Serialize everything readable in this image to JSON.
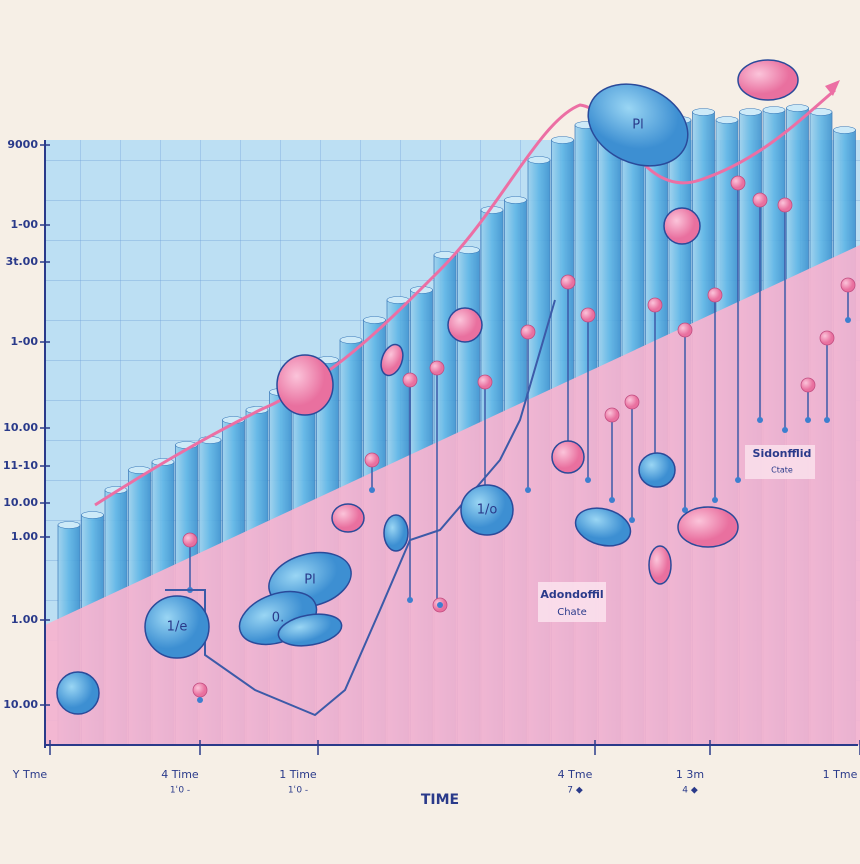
{
  "y_axis": {
    "labels": [
      "9000",
      "1-00",
      "3t.00",
      "1-00",
      "10.00",
      "11-10",
      "10.00",
      "1.00",
      "1.00",
      "10.00"
    ]
  },
  "x_axis": {
    "title": "TIME",
    "labels": [
      "Y Tme",
      "4 Time",
      "1 Time",
      "4 Tme",
      "1 3m",
      "1 Tme"
    ],
    "sublabels": [
      "1ʿ0 -",
      "1ʿ0 -",
      "7 ◆",
      "4 ◆"
    ]
  },
  "annotations": [
    {
      "title": "Sidonfflid",
      "subtitle": "Ctate"
    },
    {
      "title": "Adondoffil",
      "subtitle": "Chate"
    }
  ],
  "pill_labels": [
    "Pl",
    "Pl",
    "0.",
    "1/e",
    "1/o"
  ]
}
